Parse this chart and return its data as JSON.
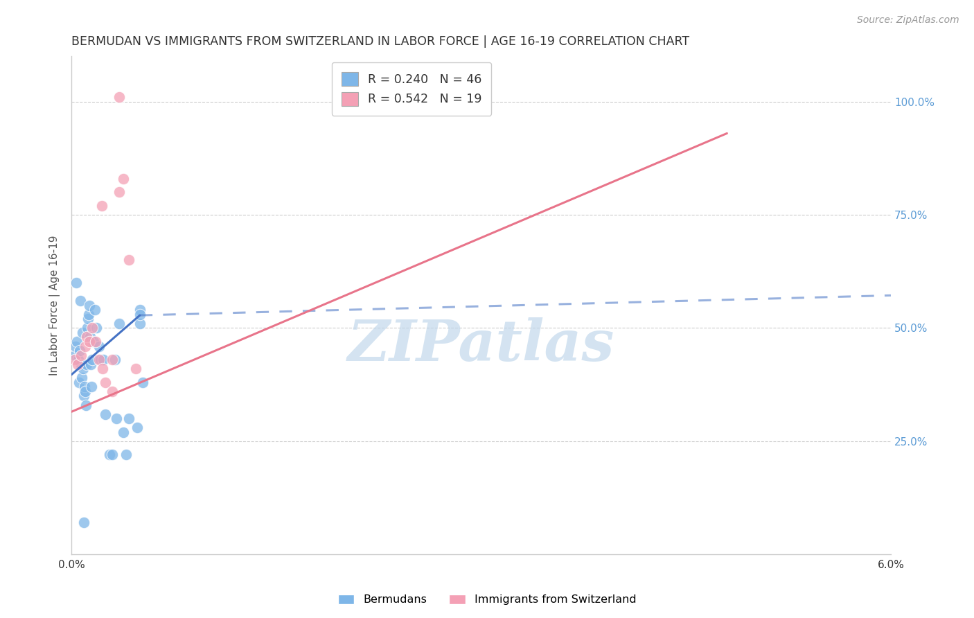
{
  "title": "BERMUDAN VS IMMIGRANTS FROM SWITZERLAND IN LABOR FORCE | AGE 16-19 CORRELATION CHART",
  "source": "Source: ZipAtlas.com",
  "ylabel_label": "In Labor Force | Age 16-19",
  "bermuda_R": 0.24,
  "bermuda_N": 46,
  "swiss_R": 0.542,
  "swiss_N": 19,
  "bermuda_color": "#7EB6E8",
  "swiss_color": "#F4A0B5",
  "bermuda_line_color": "#4472C4",
  "swiss_line_color": "#E8748A",
  "watermark": "ZIPatlas",
  "watermark_color": "#BDD5EA",
  "background_color": "#FFFFFF",
  "grid_color": "#CCCCCC",
  "right_tick_color": "#5B9BD5",
  "title_color": "#333333",
  "xlim": [
    0.0,
    0.06
  ],
  "ylim": [
    0.0,
    1.1
  ],
  "bermuda_scatter_x": [
    0.00025,
    0.0003,
    0.0004,
    0.0005,
    0.00055,
    0.0006,
    0.00065,
    0.0007,
    0.00075,
    0.0008,
    0.00085,
    0.0009,
    0.00095,
    0.001,
    0.00105,
    0.0011,
    0.00115,
    0.0012,
    0.00125,
    0.0013,
    0.00135,
    0.0014,
    0.00145,
    0.0015,
    0.0016,
    0.0017,
    0.0018,
    0.002,
    0.0021,
    0.0023,
    0.0025,
    0.0028,
    0.003,
    0.0032,
    0.0033,
    0.0035,
    0.0038,
    0.004,
    0.0042,
    0.0048,
    0.005,
    0.005,
    0.0052,
    0.00035,
    0.0009,
    0.005
  ],
  "bermuda_scatter_y": [
    0.44,
    0.46,
    0.47,
    0.43,
    0.38,
    0.45,
    0.56,
    0.42,
    0.39,
    0.49,
    0.41,
    0.35,
    0.37,
    0.36,
    0.33,
    0.42,
    0.5,
    0.52,
    0.53,
    0.55,
    0.48,
    0.42,
    0.37,
    0.43,
    0.47,
    0.54,
    0.5,
    0.46,
    0.43,
    0.43,
    0.31,
    0.22,
    0.22,
    0.43,
    0.3,
    0.51,
    0.27,
    0.22,
    0.3,
    0.28,
    0.51,
    0.54,
    0.38,
    0.6,
    0.07,
    0.53
  ],
  "swiss_scatter_x": [
    0.00025,
    0.00045,
    0.0007,
    0.001,
    0.0011,
    0.0013,
    0.0015,
    0.00175,
    0.002,
    0.00225,
    0.0025,
    0.003,
    0.0035,
    0.0038,
    0.0042,
    0.0047,
    0.0022,
    0.003,
    0.0035
  ],
  "swiss_scatter_y": [
    0.43,
    0.42,
    0.44,
    0.46,
    0.48,
    0.47,
    0.5,
    0.47,
    0.43,
    0.41,
    0.38,
    0.36,
    0.8,
    0.83,
    0.65,
    0.41,
    0.77,
    0.43,
    1.01
  ],
  "blue_solid_line": {
    "x0": 0.0,
    "y0": 0.397,
    "x1": 0.005,
    "y1": 0.528
  },
  "blue_dash_line": {
    "x0": 0.005,
    "y0": 0.528,
    "x1": 0.06,
    "y1": 0.572
  },
  "pink_line": {
    "x0": 0.0,
    "y0": 0.315,
    "x1": 0.048,
    "y1": 0.93
  }
}
